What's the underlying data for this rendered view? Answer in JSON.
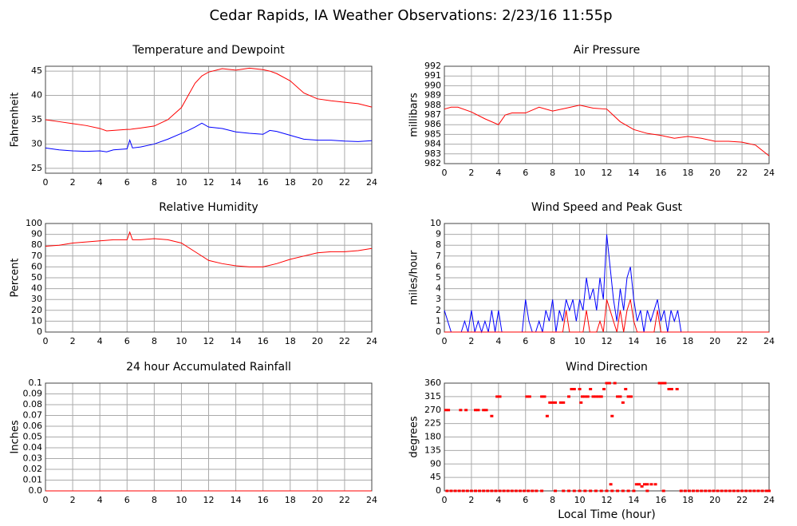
{
  "title": "Cedar Rapids, IA Weather Observations: 2/23/16 11:55p",
  "chart_data": [
    {
      "type": "line",
      "title": "Temperature and Dewpoint",
      "ylabel": "Fahrenheit",
      "grid": true,
      "xlim": [
        0,
        24
      ],
      "xticks": [
        0,
        2,
        4,
        6,
        8,
        10,
        12,
        14,
        16,
        18,
        20,
        22,
        24
      ],
      "ylim": [
        24,
        46
      ],
      "yticks": [
        25,
        30,
        35,
        40,
        45
      ],
      "x": [
        0,
        1,
        2,
        3,
        4,
        4.5,
        5,
        6,
        6.2,
        6.4,
        7,
        8,
        9,
        10,
        10.5,
        11,
        11.5,
        12,
        13,
        14,
        15,
        16,
        16.5,
        17,
        18,
        19,
        20,
        21,
        22,
        23,
        24
      ],
      "series": [
        {
          "color": "#ff0000",
          "values": [
            35,
            34.6,
            34.2,
            33.8,
            33.2,
            32.7,
            32.8,
            33,
            33,
            33.1,
            33.3,
            33.7,
            35,
            37.5,
            40,
            42.5,
            44,
            44.8,
            45.5,
            45.2,
            45.6,
            45.3,
            45,
            44.5,
            43,
            40.5,
            39.3,
            38.9,
            38.6,
            38.3,
            37.6
          ]
        },
        {
          "color": "#0000ff",
          "values": [
            29.2,
            28.8,
            28.6,
            28.5,
            28.6,
            28.4,
            28.8,
            29,
            30.8,
            29.2,
            29.4,
            30,
            31,
            32.2,
            32.8,
            33.5,
            34.3,
            33.5,
            33.2,
            32.5,
            32.2,
            32,
            32.8,
            32.6,
            31.8,
            31,
            30.8,
            30.8,
            30.6,
            30.5,
            30.7
          ]
        }
      ]
    },
    {
      "type": "line",
      "title": "Air Pressure",
      "ylabel": "millibars",
      "grid": true,
      "xlim": [
        0,
        24
      ],
      "xticks": [
        0,
        2,
        4,
        6,
        8,
        10,
        12,
        14,
        16,
        18,
        20,
        22,
        24
      ],
      "ylim": [
        982,
        992
      ],
      "yticks": [
        982,
        983,
        984,
        985,
        986,
        987,
        988,
        989,
        990,
        991,
        992
      ],
      "x": [
        0,
        0.5,
        1,
        2,
        3,
        4,
        4.5,
        5,
        6,
        7,
        8,
        9,
        10,
        11,
        12,
        13,
        14,
        15,
        16,
        17,
        18,
        19,
        20,
        21,
        22,
        23,
        24
      ],
      "series": [
        {
          "color": "#ff0000",
          "values": [
            987.6,
            987.8,
            987.8,
            987.3,
            986.6,
            986,
            987,
            987.2,
            987.2,
            987.8,
            987.4,
            987.7,
            988,
            987.7,
            987.6,
            986.3,
            985.5,
            985.1,
            984.9,
            984.6,
            984.8,
            984.6,
            984.3,
            984.3,
            984.2,
            983.9,
            982.8
          ]
        }
      ]
    },
    {
      "type": "line",
      "title": "Relative Humidity",
      "ylabel": "Percent",
      "grid": true,
      "xlim": [
        0,
        24
      ],
      "xticks": [
        0,
        2,
        4,
        6,
        8,
        10,
        12,
        14,
        16,
        18,
        20,
        22,
        24
      ],
      "ylim": [
        0,
        100
      ],
      "yticks": [
        0,
        10,
        20,
        30,
        40,
        50,
        60,
        70,
        80,
        90,
        100
      ],
      "x": [
        0,
        1,
        2,
        3,
        4,
        5,
        6,
        6.2,
        6.4,
        7,
        8,
        9,
        10,
        11,
        12,
        13,
        14,
        15,
        16,
        17,
        18,
        19,
        20,
        21,
        22,
        23,
        24
      ],
      "series": [
        {
          "color": "#ff0000",
          "values": [
            79,
            80,
            82,
            83,
            84,
            85,
            85,
            92,
            85,
            85,
            86,
            85,
            82,
            74,
            66,
            63,
            61,
            60,
            60,
            63,
            67,
            70,
            73,
            74,
            74,
            75,
            77
          ]
        }
      ]
    },
    {
      "type": "line",
      "title": "Wind Speed and Peak Gust",
      "ylabel": "miles/hour",
      "grid": true,
      "xlim": [
        0,
        24
      ],
      "xticks": [
        0,
        2,
        4,
        6,
        8,
        10,
        12,
        14,
        16,
        18,
        20,
        22,
        24
      ],
      "ylim": [
        0,
        10
      ],
      "yticks": [
        0,
        1,
        2,
        3,
        4,
        5,
        6,
        7,
        8,
        9,
        10
      ],
      "x": [
        0,
        0.25,
        0.5,
        0.75,
        1,
        1.25,
        1.5,
        1.75,
        2,
        2.25,
        2.5,
        2.75,
        3,
        3.25,
        3.5,
        3.75,
        4,
        4.25,
        4.5,
        4.75,
        5,
        5.25,
        5.5,
        5.75,
        6,
        6.25,
        6.5,
        6.75,
        7,
        7.25,
        7.5,
        7.75,
        8,
        8.25,
        8.5,
        8.75,
        9,
        9.25,
        9.5,
        9.75,
        10,
        10.25,
        10.5,
        10.75,
        11,
        11.25,
        11.5,
        11.75,
        12,
        12.25,
        12.5,
        12.75,
        13,
        13.25,
        13.5,
        13.75,
        14,
        14.25,
        14.5,
        14.75,
        15,
        15.25,
        15.5,
        15.75,
        16,
        16.25,
        16.5,
        16.75,
        17,
        17.25,
        17.5,
        17.75,
        18,
        19,
        20,
        21,
        22,
        23,
        24
      ],
      "series": [
        {
          "color": "#0000ff",
          "values": [
            2,
            1,
            0,
            0,
            0,
            0,
            1,
            0,
            2,
            0,
            1,
            0,
            1,
            0,
            2,
            0,
            2,
            0,
            0,
            0,
            0,
            0,
            0,
            0,
            3,
            1,
            0,
            0,
            1,
            0,
            2,
            1,
            3,
            0,
            2,
            1,
            3,
            2,
            3,
            1,
            3,
            2,
            5,
            3,
            4,
            2,
            5,
            3,
            9,
            6,
            3,
            1,
            4,
            2,
            5,
            6,
            3,
            1,
            2,
            0,
            2,
            1,
            2,
            3,
            1,
            2,
            0,
            2,
            1,
            2,
            0,
            0,
            0,
            0,
            0,
            0,
            0,
            0,
            0
          ]
        },
        {
          "color": "#ff0000",
          "values": [
            0,
            0,
            0,
            0,
            0,
            0,
            0,
            0,
            0,
            0,
            0,
            0,
            0,
            0,
            0,
            0,
            0,
            0,
            0,
            0,
            0,
            0,
            0,
            0,
            0,
            0,
            0,
            0,
            0,
            0,
            0,
            0,
            0,
            0,
            0,
            0,
            2,
            0,
            0,
            0,
            0,
            0,
            2,
            0,
            0,
            0,
            1,
            0,
            3,
            2,
            1,
            0,
            2,
            0,
            2,
            3,
            1,
            0,
            0,
            0,
            0,
            0,
            0,
            2,
            0,
            0,
            0,
            0,
            0,
            0,
            0,
            0,
            0,
            0,
            0,
            0,
            0,
            0,
            0
          ]
        }
      ]
    },
    {
      "type": "line",
      "title": "24 hour Accumulated Rainfall",
      "ylabel": "Inches",
      "grid": true,
      "xlim": [
        0,
        24
      ],
      "xticks": [
        0,
        2,
        4,
        6,
        8,
        10,
        12,
        14,
        16,
        18,
        20,
        22,
        24
      ],
      "ylim": [
        0,
        0.1
      ],
      "yticks": [
        {
          "value": 0,
          "label": "0.0"
        },
        0.01,
        0.02,
        0.03,
        0.04,
        0.05,
        0.06,
        0.07,
        0.08,
        0.09,
        0.1
      ],
      "x": [
        0,
        24
      ],
      "series": [
        {
          "color": "#ff0000",
          "values": [
            0,
            0
          ]
        }
      ]
    },
    {
      "type": "scatter",
      "title": "Wind Direction",
      "ylabel": "degrees",
      "xlabel": "Local Time (hour)",
      "grid": true,
      "color": "#ff0000",
      "xlim": [
        0,
        24
      ],
      "xticks": [
        0,
        2,
        4,
        6,
        8,
        10,
        12,
        14,
        16,
        18,
        20,
        22,
        24
      ],
      "ylim": [
        0,
        360
      ],
      "yticks": [
        0,
        45,
        90,
        135,
        180,
        225,
        270,
        315,
        360
      ],
      "x": [
        0.2,
        0.5,
        0.8,
        1.1,
        1.4,
        1.7,
        2,
        2.3,
        2.6,
        2.9,
        3.2,
        3.5,
        3.8,
        4.1,
        4.4,
        4.7,
        5,
        5.3,
        5.6,
        5.9,
        6.2,
        6.5,
        6.8,
        7.2,
        8.2,
        8.8,
        9.2,
        9.6,
        10,
        10.4,
        10.8,
        11.2,
        11.6,
        12,
        12.4,
        12.8,
        13.2,
        13.6,
        14,
        15,
        16.2,
        17.5,
        17.8,
        18.1,
        18.4,
        18.7,
        19,
        19.3,
        19.6,
        19.9,
        20.2,
        20.5,
        20.8,
        21.1,
        21.4,
        21.7,
        22,
        22.3,
        22.6,
        22.9,
        23.2,
        23.5,
        23.8,
        24,
        0.1,
        0.3,
        1.2,
        1.6,
        2.3,
        2.5,
        2.9,
        3.1,
        3.5,
        3.9,
        4.1,
        6.1,
        6.3,
        7.2,
        7.4,
        7.6,
        7.8,
        8,
        8.2,
        8.6,
        8.8,
        9.2,
        9.4,
        9.6,
        10,
        10.2,
        10.4,
        10.6,
        10.8,
        11,
        11.2,
        11.4,
        11.6,
        11.8,
        12,
        12.2,
        12.4,
        12.6,
        12.8,
        13,
        13.2,
        13.4,
        13.6,
        13.8,
        12.3,
        14.2,
        14.4,
        14.6,
        14.8,
        15,
        15.3,
        15.6,
        15.9,
        16.1,
        16.3,
        16.6,
        16.8,
        17.2,
        10.1
      ],
      "values": [
        0,
        0,
        0,
        0,
        0,
        0,
        0,
        0,
        0,
        0,
        0,
        0,
        0,
        0,
        0,
        0,
        0,
        0,
        0,
        0,
        0,
        0,
        0,
        0,
        0,
        0,
        0,
        0,
        0,
        0,
        0,
        0,
        0,
        0,
        0,
        0,
        0,
        0,
        0,
        0,
        0,
        0,
        0,
        0,
        0,
        0,
        0,
        0,
        0,
        0,
        0,
        0,
        0,
        0,
        0,
        0,
        0,
        0,
        0,
        0,
        0,
        0,
        0,
        0,
        270,
        270,
        270,
        270,
        270,
        270,
        270,
        270,
        250,
        315,
        315,
        315,
        315,
        315,
        315,
        250,
        295,
        295,
        295,
        295,
        295,
        315,
        340,
        340,
        340,
        315,
        315,
        315,
        340,
        315,
        315,
        315,
        315,
        340,
        360,
        360,
        250,
        360,
        315,
        315,
        295,
        340,
        315,
        315,
        22,
        22,
        22,
        15,
        22,
        22,
        22,
        22,
        360,
        360,
        360,
        340,
        340,
        340,
        295
      ]
    }
  ]
}
